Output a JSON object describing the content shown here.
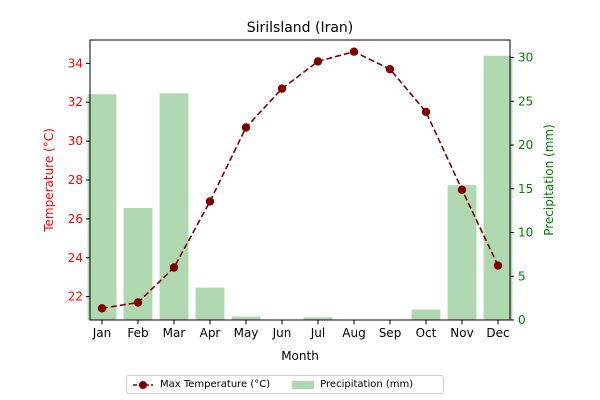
{
  "chart_data": {
    "type": "bar+line",
    "title": "Sirilsland (Iran)",
    "xlabel": "Month",
    "categories": [
      "Jan",
      "Feb",
      "Mar",
      "Apr",
      "May",
      "Jun",
      "Jul",
      "Aug",
      "Sep",
      "Oct",
      "Nov",
      "Dec"
    ],
    "left_axis": {
      "label": "Temperature (°C)",
      "color": "#ff0000",
      "ylim": [
        20.8,
        35.2
      ],
      "ticks": [
        22,
        24,
        26,
        28,
        30,
        32,
        34
      ]
    },
    "right_axis": {
      "label": "Precipitation (mm)",
      "color": "#008000",
      "ylim": [
        0,
        32
      ],
      "ticks": [
        0,
        5,
        10,
        15,
        20,
        25,
        30
      ]
    },
    "series": [
      {
        "name": "Max Temperature (°C)",
        "kind": "line",
        "axis": "left",
        "color": "#800000",
        "style": "dashed",
        "marker": "circle",
        "values": [
          21.4,
          21.7,
          23.5,
          26.9,
          30.7,
          32.7,
          34.1,
          34.6,
          33.7,
          31.5,
          27.5,
          23.6
        ]
      },
      {
        "name": "Precipitation (mm)",
        "kind": "bar",
        "axis": "right",
        "color": "#b0d8b0",
        "values": [
          25.8,
          12.8,
          25.9,
          3.7,
          0.4,
          0.0,
          0.3,
          0.0,
          0.0,
          1.2,
          15.4,
          30.2
        ]
      }
    ],
    "legend_position": "bottom-center"
  }
}
